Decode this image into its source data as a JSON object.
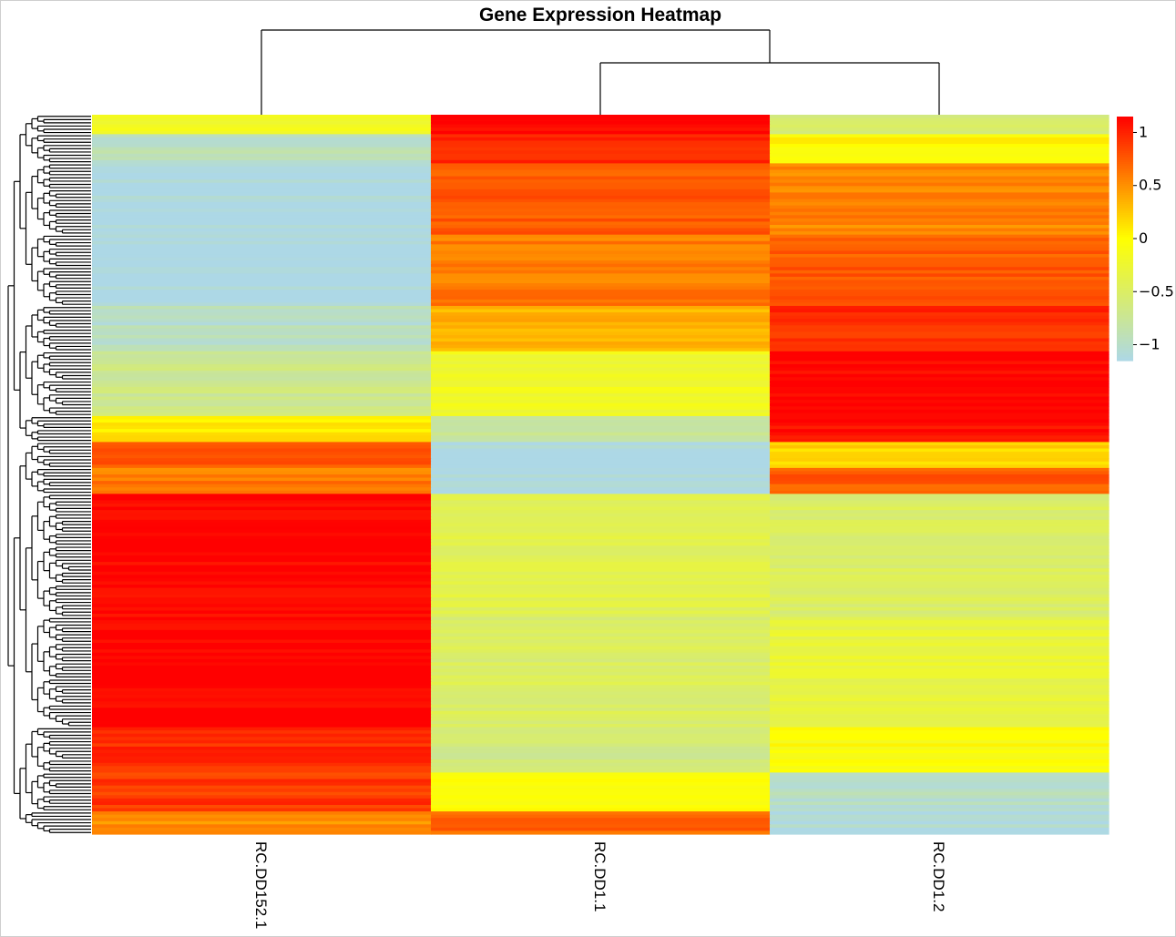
{
  "chart_data": {
    "type": "heatmap",
    "title": "Gene Expression Heatmap",
    "columns": [
      "RC.DD152.1",
      "RC.DD1.1",
      "RC.DD1.2"
    ],
    "column_dendrogram": "RC.DD152.1 | (RC.DD1.1, RC.DD1.2)",
    "colorbar": {
      "ticks": [
        "1",
        "0.5",
        "0",
        "−0.5",
        "−1"
      ],
      "tick_values": [
        1,
        0.5,
        0,
        -0.5,
        -1
      ],
      "range": [
        -1.15,
        1.15
      ],
      "colors": [
        "#add8e6",
        "#ffff00",
        "#ff0000"
      ]
    },
    "row_blocks": [
      {
        "rows": 6,
        "values": [
          -0.15,
          1.15,
          -0.55
        ]
      },
      {
        "rows": 9,
        "values": [
          -0.95,
          0.95,
          0.0
        ]
      },
      {
        "rows": 22,
        "values": [
          -1.15,
          0.75,
          0.55
        ]
      },
      {
        "rows": 22,
        "values": [
          -1.15,
          0.6,
          0.75
        ]
      },
      {
        "rows": 14,
        "values": [
          -1.0,
          0.35,
          0.95
        ]
      },
      {
        "rows": 20,
        "values": [
          -0.7,
          -0.2,
          1.15
        ]
      },
      {
        "rows": 8,
        "values": [
          0.1,
          -0.8,
          1.1
        ]
      },
      {
        "rows": 8,
        "values": [
          0.8,
          -1.15,
          0.2
        ]
      },
      {
        "rows": 8,
        "values": [
          0.6,
          -1.15,
          0.75
        ]
      },
      {
        "rows": 38,
        "values": [
          1.15,
          -0.4,
          -0.5
        ]
      },
      {
        "rows": 34,
        "values": [
          1.15,
          -0.5,
          -0.3
        ]
      },
      {
        "rows": 14,
        "values": [
          0.95,
          -0.65,
          -0.05
        ]
      },
      {
        "rows": 12,
        "values": [
          0.9,
          0.0,
          -1.0
        ]
      },
      {
        "rows": 7,
        "values": [
          0.5,
          0.7,
          -1.1
        ]
      }
    ]
  }
}
